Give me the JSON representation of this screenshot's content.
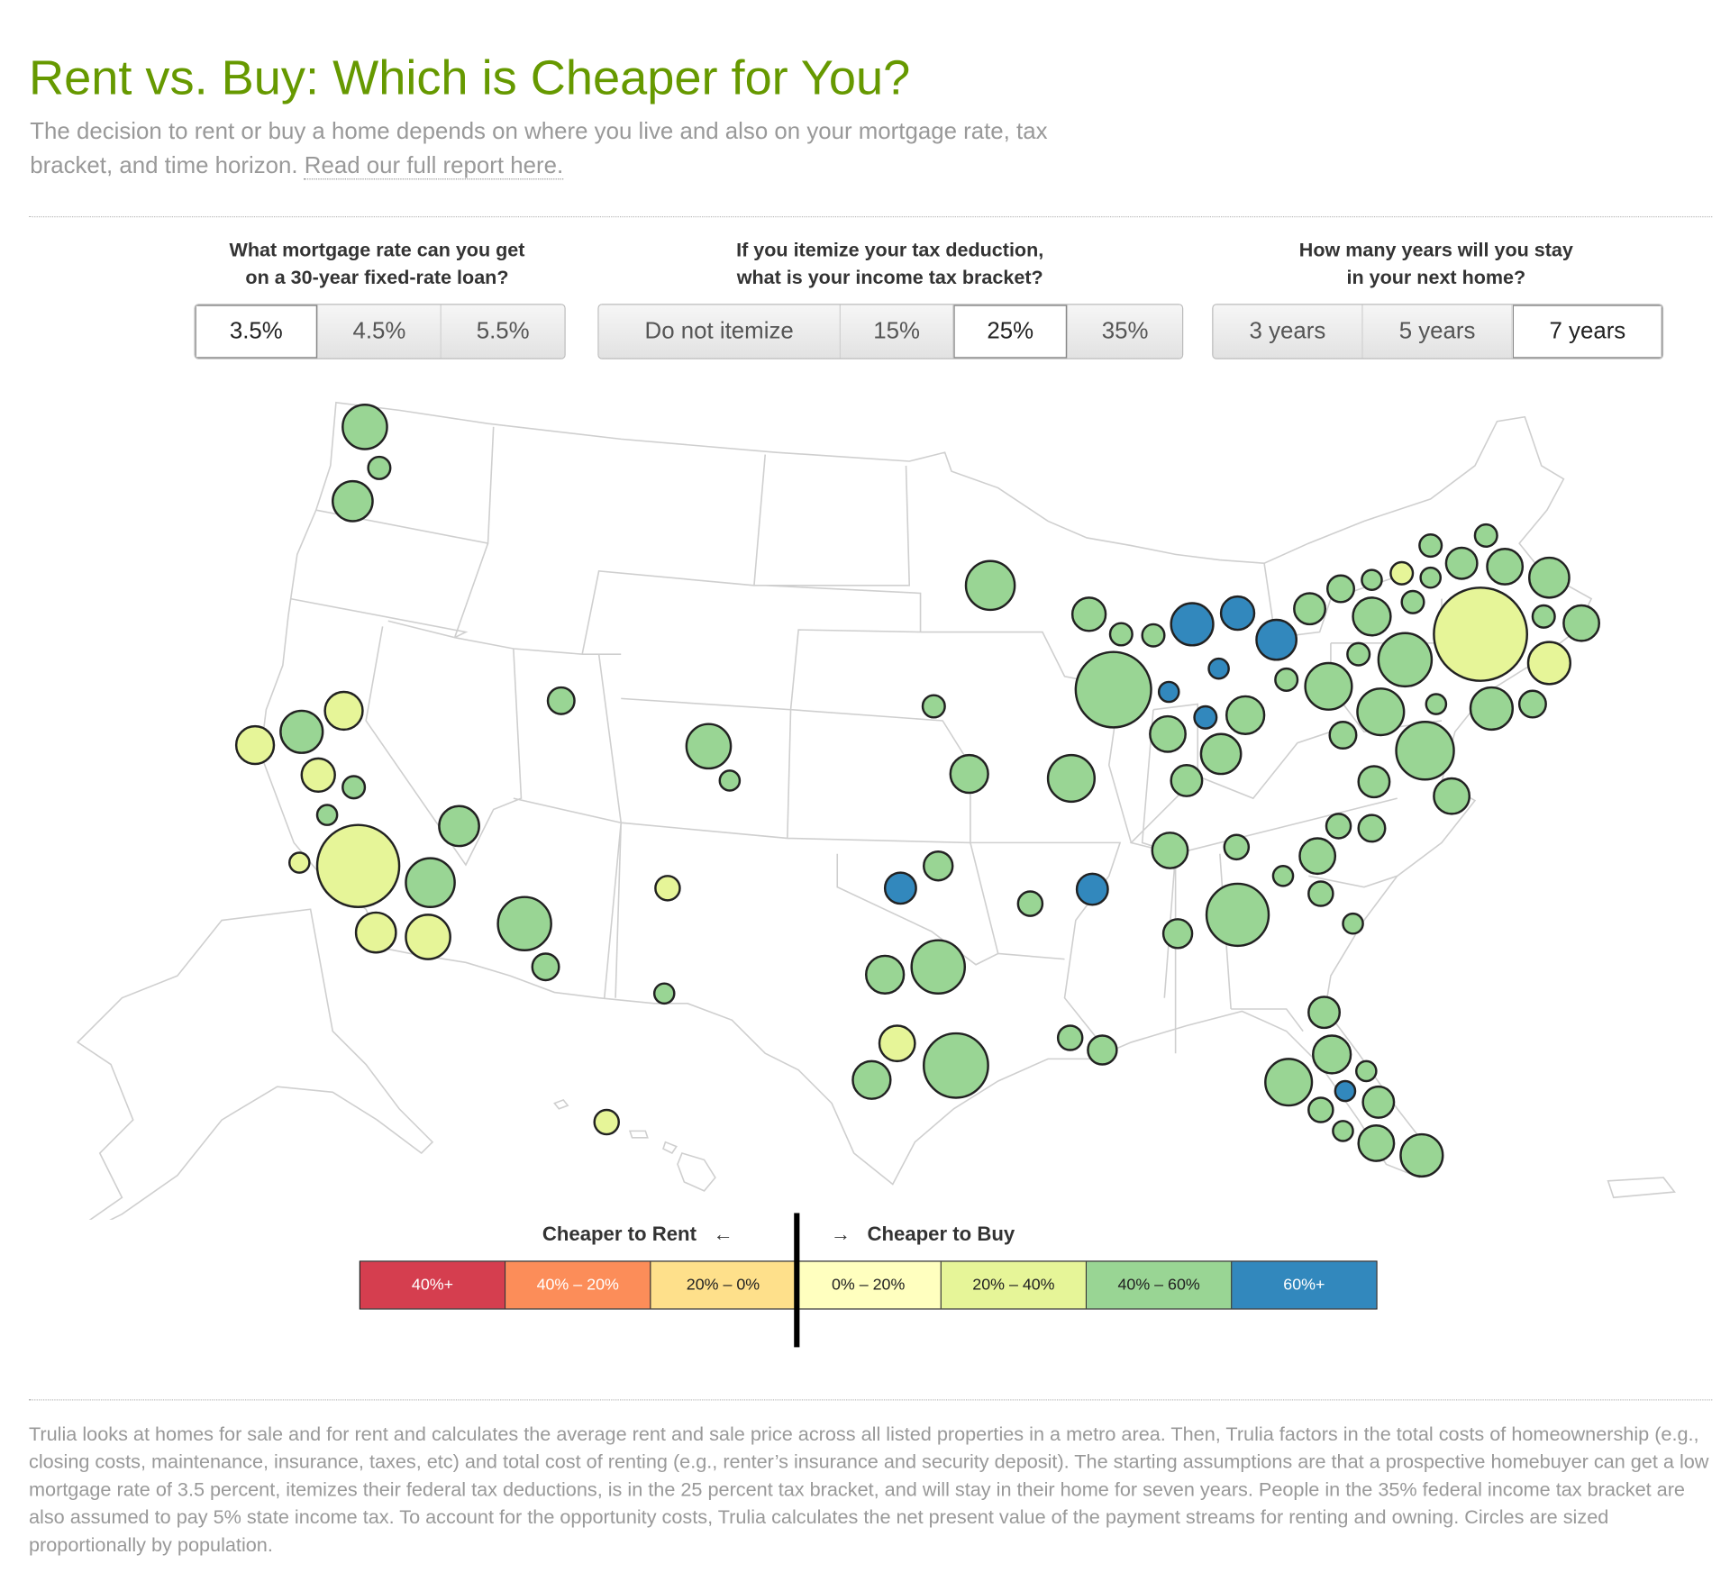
{
  "header": {
    "title": "Rent vs. Buy: Which is Cheaper for You?",
    "intro": "The decision to rent or buy a home depends on where you live and also on your mortgage rate, tax bracket, and time horizon. ",
    "report_link": "Read our full report here."
  },
  "controls": [
    {
      "question_line1": "What mortgage rate can you get",
      "question_line2": "on a 30-year fixed-rate loan?",
      "options": [
        "3.5%",
        "4.5%",
        "5.5%"
      ],
      "selected": "3.5%"
    },
    {
      "question_line1": "If you itemize your tax deduction,",
      "question_line2": "what is your income tax bracket?",
      "options": [
        "Do not itemize",
        "15%",
        "25%",
        "35%"
      ],
      "selected": "25%"
    },
    {
      "question_line1": "How many years will you stay",
      "question_line2": "in your next home?",
      "options": [
        "3 years",
        "5 years",
        "7 years"
      ],
      "selected": "7 years"
    }
  ],
  "legend": {
    "rent_label": "Cheaper to Rent",
    "rent_arrow": "←",
    "buy_arrow": "→",
    "buy_label": "Cheaper to Buy",
    "categories": [
      {
        "label": "40%+",
        "color": "#d53e4f",
        "text_color": "#ffffff"
      },
      {
        "label": "40% – 20%",
        "color": "#fc8d59",
        "text_color": "#ffffff"
      },
      {
        "label": "20% – 0%",
        "color": "#fee08b",
        "text_color": "#222222"
      },
      {
        "label": "0% – 20%",
        "color": "#ffffbf",
        "text_color": "#222222"
      },
      {
        "label": "20% – 40%",
        "color": "#e6f598",
        "text_color": "#222222"
      },
      {
        "label": "40% – 60%",
        "color": "#99d594",
        "text_color": "#222222"
      },
      {
        "label": "60%+",
        "color": "#3288bd",
        "text_color": "#ffffff"
      }
    ]
  },
  "chart_data": {
    "type": "scatter",
    "description_of_encoding": "metro circles colored by how much cheaper buying is than renting; sized by population",
    "metro_categories": [
      "40% – 60%",
      "40% – 60%",
      "40% – 60%",
      "40% – 60%",
      "40% – 60%",
      "40% – 60%",
      "40% – 60%",
      "60%+",
      "60%+",
      "60%+",
      "40% – 60%",
      "40% – 60%",
      "40% – 60%",
      "20% – 40%",
      "40% – 60%",
      "40% – 60%",
      "40% – 60%",
      "40% – 60%",
      "40% – 60%",
      "40% – 60%",
      "40% – 60%",
      "40% – 60%",
      "20% – 40%",
      "40% – 60%",
      "40% – 60%",
      "20% – 40%",
      "40% – 60%",
      "40% – 60%",
      "40% – 60%",
      "60%+",
      "40% – 60%",
      "40% – 60%",
      "60%+",
      "60%+",
      "40% – 60%",
      "40% – 60%",
      "40% – 60%",
      "40% – 60%",
      "40% – 60%",
      "40% – 60%",
      "40% – 60%",
      "40% – 60%",
      "40% – 60%",
      "40% – 60%",
      "40% – 60%",
      "40% – 60%",
      "40% – 60%",
      "40% – 60%",
      "40% – 60%",
      "40% – 60%",
      "40% – 60%",
      "40% – 60%",
      "20% – 40%",
      "40% – 60%",
      "20% – 40%",
      "20% – 40%",
      "40% – 60%",
      "40% – 60%",
      "40% – 60%",
      "20% – 40%",
      "20% – 40%",
      "40% – 60%",
      "40% – 60%",
      "20% – 40%",
      "20% – 40%",
      "40% – 60%",
      "20% – 40%",
      "40% – 60%",
      "60%+",
      "40% – 60%",
      "40% – 60%",
      "60%+",
      "40% – 60%",
      "40% – 60%",
      "40% – 60%",
      "40% – 60%",
      "40% – 60%",
      "40% – 60%",
      "40% – 60%",
      "40% – 60%",
      "40% – 60%",
      "40% – 60%",
      "40% – 60%",
      "40% – 60%",
      "20% – 40%",
      "40% – 60%",
      "40% – 60%",
      "40% – 60%",
      "40% – 60%",
      "40% – 60%",
      "40% – 60%",
      "40% – 60%",
      "40% – 60%",
      "60%+",
      "40% – 60%",
      "40% – 60%",
      "40% – 60%",
      "40% – 60%",
      "40% – 60%",
      "20% – 40%"
    ]
  },
  "footer": {
    "text": "Trulia looks at homes for sale and for rent and calculates the average rent and sale price across all listed properties in a metro area. Then, Trulia factors in the total costs of homeownership (e.g., closing costs, maintenance, insurance, taxes, etc) and total cost of renting (e.g., renter’s insurance and security deposit). The starting assumptions are that a prospective homebuyer can get a low mortgage rate of 3.5 percent, itemizes their federal tax deductions, is in the 25 percent tax bracket, and will stay in their home for seven years. People in the 35% federal income tax bracket are also assumed to pay 5% state income tax. To account for the opportunity costs, Trulia calculates the net present value of the payment streams for renting and owning. Circles are sized proportionally by population."
  }
}
